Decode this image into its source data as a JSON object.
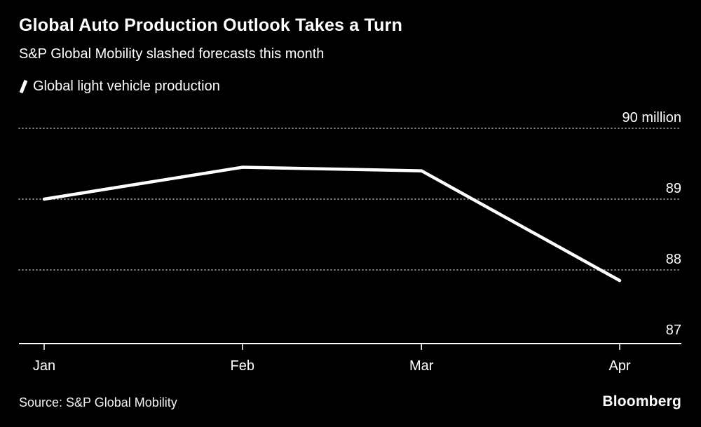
{
  "title": "Global Auto Production Outlook Takes a Turn",
  "subtitle": "S&P Global Mobility slashed forecasts this month",
  "legend": {
    "label": "Global light vehicle production"
  },
  "source": "Source: S&P Global Mobility",
  "brand": "Bloomberg",
  "colors": {
    "background": "#000000",
    "text": "#ffffff",
    "line": "#ffffff",
    "grid": "#9b9b9b",
    "axis": "#ffffff"
  },
  "chart_data": {
    "type": "line",
    "title": "Global Auto Production Outlook Takes a Turn",
    "subtitle": "S&P Global Mobility slashed forecasts this month",
    "series_name": "Global light vehicle production",
    "categories": [
      "Jan",
      "Feb",
      "Mar",
      "Apr"
    ],
    "values": [
      89.0,
      89.45,
      89.4,
      87.85
    ],
    "unit": "million vehicles",
    "xlabel": "",
    "ylabel": "",
    "ylim": [
      86.96,
      90.0
    ],
    "yticks": [
      87,
      88,
      89,
      90
    ],
    "ytick_labels": [
      "87",
      "88",
      "89",
      "90 million"
    ],
    "grid": "dotted-horizontal",
    "legend_position": "top-left",
    "axis_label_side": "right"
  }
}
